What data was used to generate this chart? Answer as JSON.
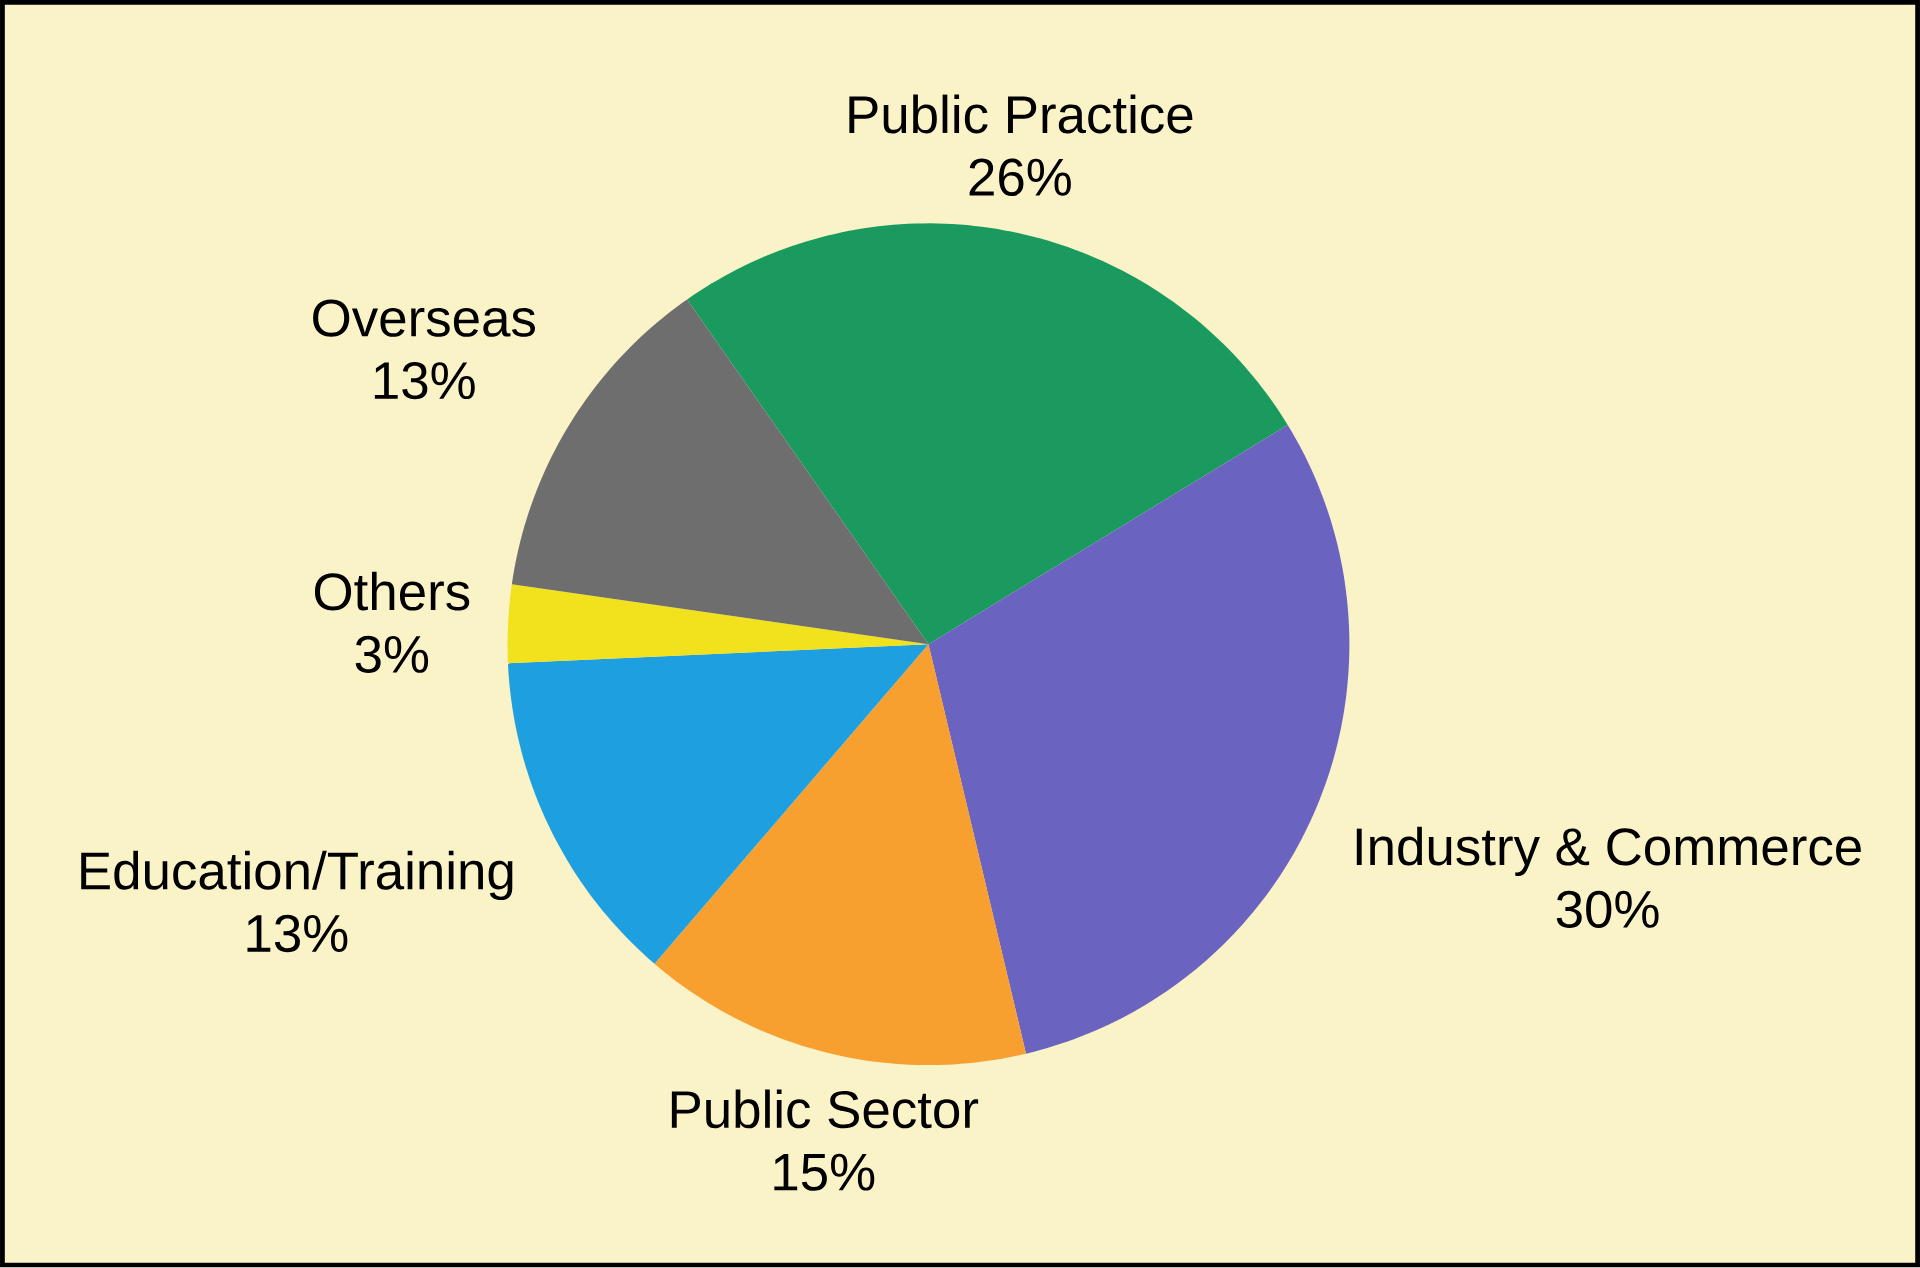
{
  "chart_data": {
    "type": "pie",
    "categories": [
      "Public Practice",
      "Industry & Commerce",
      "Public Sector",
      "Education/Training",
      "Others",
      "Overseas"
    ],
    "values": [
      26,
      30,
      15,
      13,
      3,
      13
    ],
    "value_labels": [
      "26%",
      "30%",
      "15%",
      "13%",
      "3%",
      "13%"
    ],
    "colors": [
      "#1a9a5e",
      "#6b63c0",
      "#f7a030",
      "#1ea0e0",
      "#f2e21e",
      "#6e6e6e"
    ]
  }
}
